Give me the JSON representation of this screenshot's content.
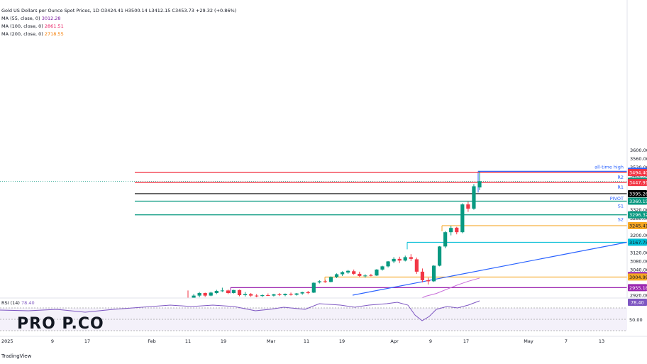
{
  "legend": {
    "title": "Gold US Dollars per Ounce Spot Prices, 1D",
    "ohlc": "O3424.41 H3500.14 L3412.15 C3453.73 +29.32 (+0.86%)",
    "ma55": {
      "label": "MA (55, close, 0)",
      "value": "3012.28",
      "color": "#7b1fa2"
    },
    "ma100": {
      "label": "MA (100, close, 0)",
      "value": "2861.51",
      "color": "#e91e63"
    },
    "ma200": {
      "label": "MA (200, close, 0)",
      "value": "2718.55",
      "color": "#f57c00"
    }
  },
  "rsi": {
    "label": "RSI (14)",
    "value": "78.40",
    "tick": "50.00"
  },
  "brand": "PRO P.CO",
  "footer": "TradingView",
  "colors": {
    "up": "#089981",
    "down": "#f23645",
    "accent": "#2962ff"
  },
  "chart_data": {
    "type": "candlestick",
    "y_axis": {
      "ticks": [
        2920,
        2960,
        3000,
        3040,
        3080,
        3120,
        3160,
        3200,
        3240,
        3280,
        3320,
        3360,
        3400,
        3440,
        3480,
        3520,
        3560,
        3600
      ],
      "labels": [
        "2920.00",
        "",
        "",
        "3040.00",
        "3080.00",
        "3120.00",
        "",
        "3200.00",
        "",
        "3280.00",
        "3320.00",
        "",
        "",
        "",
        "3480.00",
        "3520.00",
        "3560.00",
        "3600.00"
      ]
    },
    "x_axis": {
      "labels": [
        {
          "text": "2025",
          "x": 2
        },
        {
          "text": "9",
          "x": 74
        },
        {
          "text": "17",
          "x": 123
        },
        {
          "text": "Feb",
          "x": 214
        },
        {
          "text": "11",
          "x": 265
        },
        {
          "text": "19",
          "x": 315
        },
        {
          "text": "Mar",
          "x": 382
        },
        {
          "text": "11",
          "x": 432
        },
        {
          "text": "19",
          "x": 482
        },
        {
          "text": "Apr",
          "x": 556
        },
        {
          "text": "9",
          "x": 607
        },
        {
          "text": "17",
          "x": 657
        },
        {
          "text": "May",
          "x": 745
        },
        {
          "text": "7",
          "x": 798
        },
        {
          "text": "13",
          "x": 848
        }
      ]
    },
    "levels": [
      {
        "name": "all-time high",
        "value": 3500.14,
        "label": "3500.14",
        "color": "#2962ff",
        "tag": "all-time high"
      },
      {
        "name": "R2",
        "value": 3494.4,
        "label": "3494.40",
        "color": "#f23645",
        "tag": "R2"
      },
      {
        "name": "current",
        "value": 3453.73,
        "label": "3453.73",
        "color": "#089981",
        "tag": ""
      },
      {
        "name": "R1",
        "value": 3447.91,
        "label": "3447.91",
        "color": "#f23645",
        "tag": "R1"
      },
      {
        "name": "PIVOT",
        "value": 3395.26,
        "label": "3395.26",
        "color": "#000000",
        "tag": "PIVOT"
      },
      {
        "name": "S1",
        "value": 3360.15,
        "label": "3360.15",
        "color": "#089981",
        "tag": "S1"
      },
      {
        "name": "S2",
        "value": 3296.32,
        "label": "3296.32",
        "color": "#089981",
        "tag": "S2"
      },
      {
        "name": "3245.41",
        "value": 3245.41,
        "label": "3245.41",
        "color": "#f5a623",
        "tag": ""
      },
      {
        "name": "3167.78",
        "value": 3167.78,
        "label": "3167.78",
        "color": "#00bcd4",
        "tag": ""
      },
      {
        "name": "MA55",
        "value": 3012.28,
        "label": "3012.28",
        "color": "#9c27b0",
        "tag": ""
      },
      {
        "name": "3004.99",
        "value": 3004.99,
        "label": "3004.99",
        "color": "#f5a623",
        "tag": ""
      },
      {
        "name": "2955.18",
        "value": 2955.18,
        "label": "2955.18",
        "color": "#9c27b0",
        "tag": ""
      }
    ],
    "candles": [
      {
        "o": 2908,
        "h": 2942,
        "l": 2900,
        "c": 2905
      },
      {
        "o": 2905,
        "h": 2925,
        "l": 2898,
        "c": 2918
      },
      {
        "o": 2918,
        "h": 2935,
        "l": 2910,
        "c": 2930
      },
      {
        "o": 2930,
        "h": 2932,
        "l": 2912,
        "c": 2918
      },
      {
        "o": 2918,
        "h": 2936,
        "l": 2915,
        "c": 2932
      },
      {
        "o": 2930,
        "h": 2945,
        "l": 2925,
        "c": 2940
      },
      {
        "o": 2940,
        "h": 2955,
        "l": 2935,
        "c": 2942
      },
      {
        "o": 2942,
        "h": 2946,
        "l": 2925,
        "c": 2930
      },
      {
        "o": 2930,
        "h": 2945,
        "l": 2928,
        "c": 2944
      },
      {
        "o": 2944,
        "h": 2946,
        "l": 2915,
        "c": 2920
      },
      {
        "o": 2920,
        "h": 2935,
        "l": 2914,
        "c": 2925
      },
      {
        "o": 2925,
        "h": 2930,
        "l": 2912,
        "c": 2918
      },
      {
        "o": 2918,
        "h": 2925,
        "l": 2910,
        "c": 2916
      },
      {
        "o": 2916,
        "h": 2924,
        "l": 2912,
        "c": 2920
      },
      {
        "o": 2920,
        "h": 2928,
        "l": 2916,
        "c": 2918
      },
      {
        "o": 2918,
        "h": 2926,
        "l": 2914,
        "c": 2924
      },
      {
        "o": 2924,
        "h": 2930,
        "l": 2916,
        "c": 2920
      },
      {
        "o": 2920,
        "h": 2928,
        "l": 2915,
        "c": 2926
      },
      {
        "o": 2926,
        "h": 2932,
        "l": 2918,
        "c": 2922
      },
      {
        "o": 2922,
        "h": 2930,
        "l": 2918,
        "c": 2928
      },
      {
        "o": 2928,
        "h": 2936,
        "l": 2922,
        "c": 2934
      },
      {
        "o": 2934,
        "h": 2940,
        "l": 2925,
        "c": 2930
      },
      {
        "o": 2932,
        "h": 2980,
        "l": 2930,
        "c": 2978
      },
      {
        "o": 2980,
        "h": 2990,
        "l": 2975,
        "c": 2985
      },
      {
        "o": 2985,
        "h": 2992,
        "l": 2978,
        "c": 2982
      },
      {
        "o": 2982,
        "h": 3008,
        "l": 2980,
        "c": 3005
      },
      {
        "o": 3005,
        "h": 3022,
        "l": 3000,
        "c": 3018
      },
      {
        "o": 3018,
        "h": 3032,
        "l": 3010,
        "c": 3028
      },
      {
        "o": 3026,
        "h": 3038,
        "l": 3020,
        "c": 3034
      },
      {
        "o": 3032,
        "h": 3040,
        "l": 3015,
        "c": 3020
      },
      {
        "o": 3020,
        "h": 3030,
        "l": 3004,
        "c": 3010
      },
      {
        "o": 3010,
        "h": 3018,
        "l": 3002,
        "c": 3012
      },
      {
        "o": 3014,
        "h": 3020,
        "l": 3008,
        "c": 3012
      },
      {
        "o": 3012,
        "h": 3042,
        "l": 3010,
        "c": 3040
      },
      {
        "o": 3040,
        "h": 3058,
        "l": 3035,
        "c": 3055
      },
      {
        "o": 3055,
        "h": 3080,
        "l": 3050,
        "c": 3078
      },
      {
        "o": 3078,
        "h": 3098,
        "l": 3070,
        "c": 3090
      },
      {
        "o": 3090,
        "h": 3100,
        "l": 3070,
        "c": 3082
      },
      {
        "o": 3082,
        "h": 3105,
        "l": 3078,
        "c": 3098
      },
      {
        "o": 3098,
        "h": 3112,
        "l": 3080,
        "c": 3090
      },
      {
        "o": 3088,
        "h": 3096,
        "l": 3020,
        "c": 3030
      },
      {
        "o": 3030,
        "h": 3045,
        "l": 2980,
        "c": 2990
      },
      {
        "o": 2990,
        "h": 3002,
        "l": 2970,
        "c": 2985
      },
      {
        "o": 2985,
        "h": 3060,
        "l": 2982,
        "c": 3058
      },
      {
        "o": 3058,
        "h": 3150,
        "l": 3055,
        "c": 3148
      },
      {
        "o": 3148,
        "h": 3220,
        "l": 3140,
        "c": 3215
      },
      {
        "o": 3215,
        "h": 3245,
        "l": 3200,
        "c": 3235
      },
      {
        "o": 3236,
        "h": 3240,
        "l": 3205,
        "c": 3215
      },
      {
        "o": 3215,
        "h": 3350,
        "l": 3210,
        "c": 3345
      },
      {
        "o": 3345,
        "h": 3358,
        "l": 3310,
        "c": 3325
      },
      {
        "o": 3325,
        "h": 3440,
        "l": 3320,
        "c": 3430
      },
      {
        "o": 3424.41,
        "h": 3500.14,
        "l": 3412.15,
        "c": 3453.73
      }
    ],
    "ma_line": [
      [
        590,
        2900
      ],
      [
        600,
        2915
      ],
      [
        615,
        2928
      ],
      [
        630,
        2948
      ],
      [
        645,
        2968
      ],
      [
        660,
        2985
      ],
      [
        676,
        3000
      ]
    ],
    "trendline": {
      "x1": 497,
      "v1": 2920,
      "x2": 884,
      "v2": 3168
    },
    "rsi_value": 78.4
  }
}
